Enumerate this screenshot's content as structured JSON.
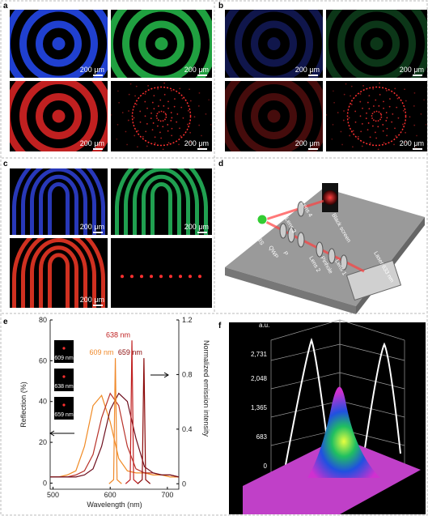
{
  "panels": {
    "a": {
      "label": "a",
      "scale_bars": [
        "200 μm",
        "200 μm",
        "200 μm",
        "200 μm"
      ]
    },
    "b": {
      "label": "b",
      "scale_bars": [
        "200 μm",
        "200 μm",
        "200 μm",
        "200 μm"
      ]
    },
    "c": {
      "label": "c",
      "scale_bars": [
        "200 μm",
        "200 μm",
        "200 μm"
      ]
    },
    "d": {
      "label": "d",
      "parts": [
        "Black screen",
        "Lens 4",
        "Lens 3",
        "Sample",
        "BS",
        "QWP",
        "P",
        "Lens 2",
        "Pinhole",
        "Lens 1",
        "Laser 633 nm"
      ]
    },
    "e": {
      "label": "e"
    },
    "f": {
      "label": "f",
      "unit": "a.u.",
      "ticks": [
        "2,731",
        "2,048",
        "1,365",
        "683",
        "0"
      ]
    }
  },
  "chart_data": {
    "type": "line",
    "x_label": "Wavelength (nm)",
    "y_label": "Reflection (%)",
    "y2_label": "Normalized emission intensity",
    "xlim": [
      495,
      720
    ],
    "xticks": [
      500,
      600,
      700
    ],
    "ylim": [
      -3,
      80
    ],
    "yticks": [
      0,
      20,
      40,
      60,
      80
    ],
    "y2lim": [
      -0.04,
      1.2
    ],
    "y2ticks": [
      0,
      0.4,
      0.8,
      1.2
    ],
    "series": [
      {
        "color": "#f08a24",
        "x": [
          495,
          510,
          525,
          540,
          555,
          570,
          585,
          600,
          615,
          630,
          645,
          660,
          675,
          690,
          705,
          720
        ],
        "values": [
          3,
          3,
          4,
          6,
          18,
          38,
          43,
          30,
          12,
          6,
          5,
          5,
          4,
          4,
          3,
          3
        ]
      },
      {
        "color": "#b8322a",
        "x": [
          495,
          510,
          525,
          540,
          555,
          570,
          585,
          600,
          615,
          630,
          645,
          660,
          675,
          690,
          705,
          720
        ],
        "values": [
          3,
          3,
          3,
          4,
          6,
          14,
          32,
          44,
          38,
          18,
          7,
          5,
          5,
          4,
          4,
          3
        ]
      },
      {
        "color": "#6e0f1e",
        "x": [
          495,
          510,
          525,
          540,
          555,
          570,
          585,
          600,
          615,
          630,
          645,
          660,
          675,
          690,
          705,
          720
        ],
        "values": [
          3,
          3,
          3,
          3,
          4,
          7,
          18,
          36,
          44,
          40,
          22,
          8,
          5,
          4,
          4,
          3
        ]
      },
      {
        "name": "609 nm",
        "color": "#f0892a",
        "axis": "y2",
        "x": [
          598,
          606,
          609,
          612,
          620
        ],
        "values": [
          0,
          0.03,
          0.92,
          0.03,
          0
        ]
      },
      {
        "name": "638 nm",
        "color": "#c02020",
        "axis": "y2",
        "x": [
          627,
          635,
          638,
          641,
          649
        ],
        "values": [
          0,
          0.03,
          1.05,
          0.03,
          0
        ]
      },
      {
        "name": "659 nm",
        "color": "#8b0a0a",
        "axis": "y2",
        "x": [
          648,
          656,
          659,
          662,
          670
        ],
        "values": [
          0,
          0.03,
          0.92,
          0.03,
          0
        ]
      }
    ]
  }
}
